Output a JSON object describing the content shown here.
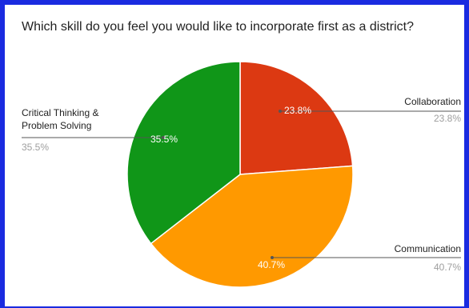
{
  "chart_data": {
    "type": "pie",
    "title": "Which skill do you feel you would like to incorporate first as a district?",
    "slices": [
      {
        "label": "Collaboration",
        "value": 23.8,
        "slice_label": "23.8%",
        "legend_value": "23.8%",
        "color": "#dc3912"
      },
      {
        "label": "Communication",
        "value": 40.7,
        "slice_label": "40.7%",
        "legend_value": "40.7%",
        "color": "#ff9900"
      },
      {
        "label": "Critical Thinking & Problem Solving",
        "label_lines": [
          "Critical Thinking &",
          "Problem Solving"
        ],
        "value": 35.5,
        "slice_label": "35.5%",
        "legend_value": "35.5%",
        "color": "#109618"
      }
    ],
    "start_angle": "12 o'clock",
    "direction": "clockwise",
    "legend": "labeled",
    "border_color": "#1a2be0"
  }
}
